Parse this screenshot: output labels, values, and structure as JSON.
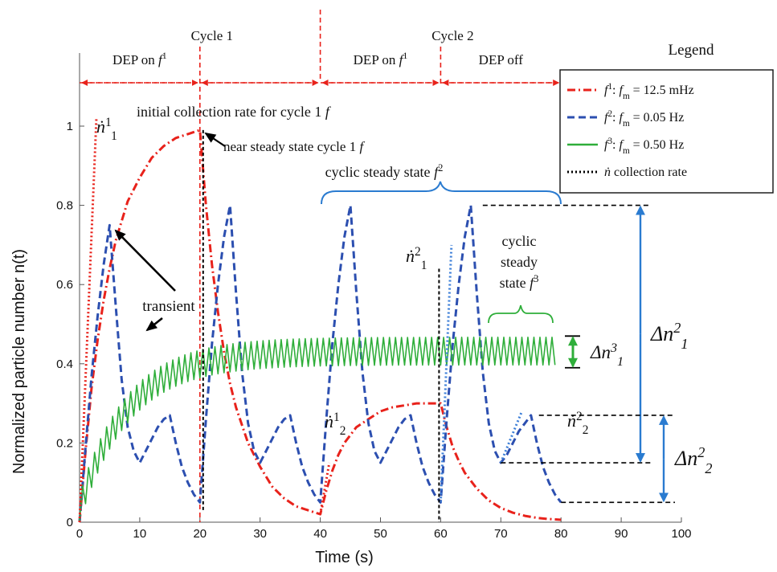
{
  "chart_data": {
    "type": "line",
    "xlabel": "Time (s)",
    "ylabel": "Normalized particle number n(t)",
    "xlim": [
      0,
      100
    ],
    "ylim": [
      0,
      1.05
    ],
    "x_ticks": [
      "0",
      "10",
      "20",
      "30",
      "40",
      "50",
      "60",
      "70",
      "80",
      "90",
      "100"
    ],
    "y_ticks": [
      "0",
      "0.2",
      "0.4",
      "0.6",
      "0.8",
      "1"
    ],
    "grid": false,
    "legend_placement": "top-right",
    "legend_title": "Legend",
    "legend": [
      {
        "sym": "f",
        "sup": "1",
        "text": ":  f",
        "sub": "m",
        "value": " = 12.5 mHz",
        "color": "#e8221b",
        "style": "dashdot"
      },
      {
        "sym": "f",
        "sup": "2",
        "text": ":  f",
        "sub": "m",
        "value": " = 0.05 Hz",
        "color": "#2c4fb0",
        "style": "dashed"
      },
      {
        "sym": "f",
        "sup": "3",
        "text": ":  f",
        "sub": "m",
        "value": " = 0.50 Hz",
        "color": "#2fae3a",
        "style": "solid"
      },
      {
        "sym": "ṅ",
        "sup": "",
        "text": " collection rate",
        "sub": "",
        "value": "",
        "color": "#000000",
        "style": "dotted"
      }
    ],
    "phases": [
      {
        "label": "DEP on f",
        "sup": "1",
        "x0": 0,
        "x1": 20
      },
      {
        "label": "",
        "sup": "",
        "x0": 20,
        "x1": 40
      },
      {
        "label": "DEP on f",
        "sup": "1",
        "x0": 40,
        "x1": 60
      },
      {
        "label": "DEP off",
        "sup": "",
        "x0": 60,
        "x1": 80
      }
    ],
    "cycles": [
      {
        "label": "Cycle 1",
        "x": 20
      },
      {
        "label": "Cycle 2",
        "x": 60
      }
    ],
    "series": [
      {
        "name": "f1",
        "color": "#e8221b",
        "style": "dashdot",
        "x": [
          0,
          1,
          2,
          3,
          4,
          5,
          6,
          8,
          10,
          12,
          14,
          16,
          18,
          20,
          21,
          22,
          23,
          24,
          25,
          26,
          28,
          30,
          32,
          34,
          36,
          38,
          40,
          41,
          42,
          43,
          44,
          46,
          48,
          50,
          52,
          54,
          56,
          58,
          60,
          61,
          62,
          63,
          64,
          66,
          68,
          70,
          72,
          74,
          76,
          78,
          80
        ],
        "y": [
          0,
          0.18,
          0.34,
          0.46,
          0.56,
          0.64,
          0.71,
          0.81,
          0.87,
          0.92,
          0.95,
          0.97,
          0.98,
          0.99,
          0.8,
          0.65,
          0.53,
          0.43,
          0.35,
          0.29,
          0.2,
          0.14,
          0.09,
          0.06,
          0.04,
          0.03,
          0.02,
          0.08,
          0.13,
          0.17,
          0.2,
          0.24,
          0.26,
          0.28,
          0.29,
          0.295,
          0.3,
          0.3,
          0.3,
          0.24,
          0.19,
          0.155,
          0.125,
          0.085,
          0.055,
          0.036,
          0.024,
          0.016,
          0.011,
          0.008,
          0.006
        ]
      },
      {
        "name": "f2",
        "color": "#2c4fb0",
        "style": "dashed",
        "x": [
          0,
          1,
          2,
          3,
          4,
          5,
          6,
          7,
          8,
          9,
          10,
          11,
          12,
          13,
          14,
          15,
          16,
          17,
          18,
          19,
          20,
          21,
          22,
          23,
          24,
          25,
          26,
          27,
          28,
          29,
          30,
          31,
          32,
          33,
          34,
          35,
          36,
          37,
          38,
          39,
          40,
          41,
          42,
          43,
          44,
          45,
          46,
          47,
          48,
          49,
          50,
          51,
          52,
          53,
          54,
          55,
          56,
          57,
          58,
          59,
          60,
          61,
          62,
          63,
          64,
          65,
          66,
          67,
          68,
          69,
          70,
          71,
          72,
          73,
          74,
          75,
          76,
          77,
          78,
          79,
          80
        ],
        "y": [
          0,
          0.19,
          0.37,
          0.52,
          0.65,
          0.75,
          0.55,
          0.36,
          0.24,
          0.18,
          0.15,
          0.18,
          0.21,
          0.24,
          0.26,
          0.27,
          0.2,
          0.14,
          0.1,
          0.07,
          0.05,
          0.26,
          0.45,
          0.6,
          0.72,
          0.8,
          0.58,
          0.38,
          0.25,
          0.18,
          0.15,
          0.18,
          0.21,
          0.24,
          0.26,
          0.27,
          0.2,
          0.14,
          0.1,
          0.07,
          0.05,
          0.26,
          0.45,
          0.6,
          0.72,
          0.8,
          0.58,
          0.38,
          0.25,
          0.18,
          0.15,
          0.18,
          0.21,
          0.24,
          0.26,
          0.27,
          0.2,
          0.14,
          0.1,
          0.07,
          0.05,
          0.26,
          0.45,
          0.6,
          0.72,
          0.8,
          0.58,
          0.38,
          0.25,
          0.18,
          0.15,
          0.17,
          0.2,
          0.23,
          0.25,
          0.27,
          0.2,
          0.14,
          0.1,
          0.07,
          0.05
        ]
      },
      {
        "name": "f3",
        "color": "#2fae3a",
        "style": "solid",
        "x_start": 0,
        "x_end": 79,
        "period_s": 1,
        "baseline_start": 0,
        "baseline_end": 0.397,
        "baseline_tau_s": 8,
        "amplitude": 0.07
      }
    ],
    "collection_rate_lines": [
      {
        "label": "ṅ",
        "sup": "1",
        "sub": "1",
        "x": [
          0,
          2.8
        ],
        "y": [
          0,
          1.02
        ]
      },
      {
        "label": "ṅ",
        "sup": "2",
        "sub": "1",
        "x": [
          60,
          61.8
        ],
        "y": [
          0.05,
          0.7
        ]
      },
      {
        "label": "ṅ",
        "sup": "1",
        "sub": "2",
        "x": [
          40,
          41.5
        ],
        "y": [
          0.02,
          0.15
        ]
      },
      {
        "label": "ṅ",
        "sup": "2",
        "sub": "2",
        "x": [
          70,
          73.5
        ],
        "y": [
          0.15,
          0.28
        ]
      }
    ],
    "annotations": {
      "initial_rate": "initial collection rate for cycle 1 f",
      "near_steady": "near steady state cycle 1 f",
      "cyclic_f2": "cyclic steady state f",
      "cyclic_f2_sup": "2",
      "cyclic_f3": [
        "cyclic",
        "steady",
        "state f"
      ],
      "cyclic_f3_sup": "3",
      "transient": "transient"
    },
    "deltas": [
      {
        "label": "Δn",
        "sup": "3",
        "sub": "1",
        "y_top": 0.47,
        "y_bot": 0.39
      },
      {
        "label": "Δn",
        "sup": "2",
        "sub": "1",
        "y_top": 0.8,
        "y_bot": 0.15
      },
      {
        "label": "Δn",
        "sup": "2",
        "sub": "2",
        "y_top": 0.27,
        "y_bot": 0.05
      }
    ]
  }
}
